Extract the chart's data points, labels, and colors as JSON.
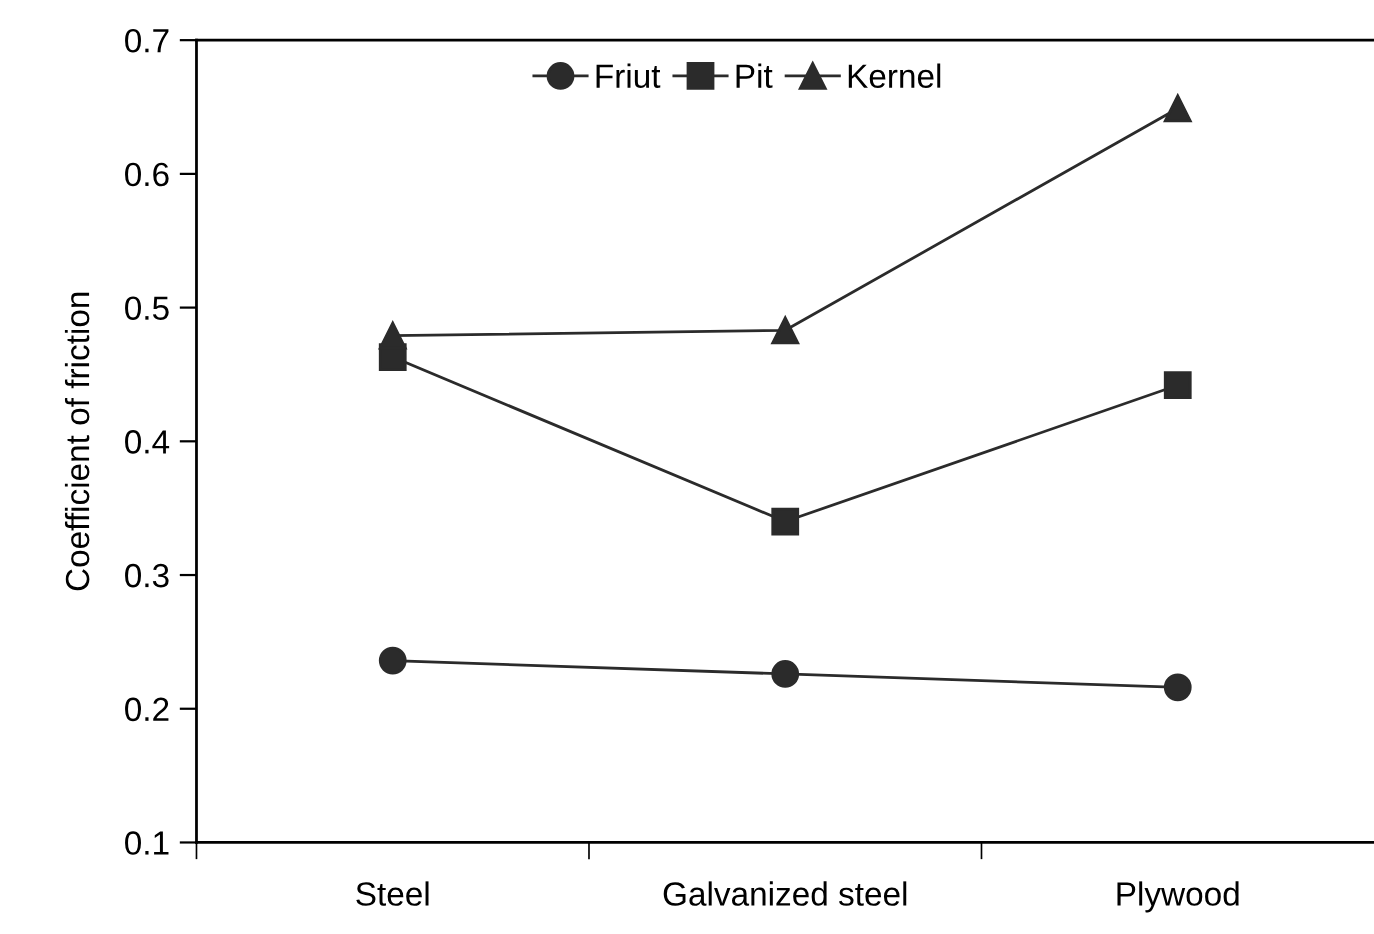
{
  "chart_data": {
    "type": "line",
    "ylabel": "Coefficient of friction",
    "categories": [
      "Steel",
      "Galvanized steel",
      "Plywood"
    ],
    "series": [
      {
        "name": "Friut",
        "color": "#2b2b2b",
        "marker": "circle",
        "values": [
          0.236,
          0.226,
          0.216
        ]
      },
      {
        "name": "Pit",
        "color": "#2b2b2b",
        "marker": "square",
        "values": [
          0.463,
          0.34,
          0.442
        ]
      },
      {
        "name": "Kernel",
        "color": "#2b2b2b",
        "marker": "triangle",
        "values": [
          0.479,
          0.483,
          0.649
        ]
      }
    ],
    "ylim": [
      0.1,
      0.7
    ],
    "yticks": [
      0.1,
      0.2,
      0.3,
      0.4,
      0.5,
      0.6,
      0.7
    ],
    "legend": "top",
    "grid": false,
    "line_style": "solid"
  }
}
